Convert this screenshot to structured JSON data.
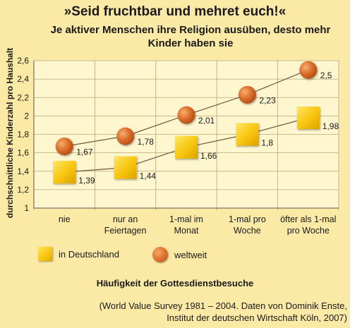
{
  "chart_data": {
    "type": "line",
    "title": "»Seid fruchtbar und mehret euch!«",
    "subtitle": "Je aktiver Menschen ihre Religion ausüben, desto mehr Kinder haben sie",
    "xlabel": "Häufigkeit der Gottesdienstbesuche",
    "ylabel": "durchschnittliche Kinderzahl pro Haushalt",
    "categories": [
      "nie",
      "nur an Feiertagen",
      "1-mal im Monat",
      "1-mal pro Woche",
      "öfter als 1-mal pro Woche"
    ],
    "category_lines": [
      [
        "nie"
      ],
      [
        "nur an",
        "Feiertagen"
      ],
      [
        "1-mal im",
        "Monat"
      ],
      [
        "1-mal pro",
        "Woche"
      ],
      [
        "öfter als 1-mal",
        "pro Woche"
      ]
    ],
    "series": [
      {
        "name": "in Deutschland",
        "values": [
          1.39,
          1.44,
          1.66,
          1.8,
          1.98
        ],
        "labels": [
          "1,39",
          "1,44",
          "1,66",
          "1,8",
          "1,98"
        ],
        "marker": "square",
        "color": "#f7c40a"
      },
      {
        "name": "weltweit",
        "values": [
          1.67,
          1.78,
          2.01,
          2.23,
          2.5
        ],
        "labels": [
          "1,67",
          "1,78",
          "2,01",
          "2,23",
          "2,5"
        ],
        "marker": "circle",
        "color": "#dc6e2a"
      }
    ],
    "ylim": [
      1,
      2.6
    ],
    "yticks": [
      1,
      1.2,
      1.4,
      1.6,
      1.8,
      2,
      2.2,
      2.4,
      2.6
    ],
    "ytick_labels": [
      "1",
      "1,2",
      "1,4",
      "1,6",
      "1,8",
      "2",
      "2,2",
      "2,4",
      "2,6"
    ],
    "grid": true,
    "legend_position": "bottom"
  },
  "source": {
    "line1": "(World Value Survey 1981 – 2004. Daten von Dominik Enste,",
    "line2": "Institut der deutschen Wirtschaft Köln, 2007)"
  },
  "colors": {
    "page_background": "#fbe9a6",
    "plot_background": "#fef6cf",
    "grid": "#b9a678"
  }
}
